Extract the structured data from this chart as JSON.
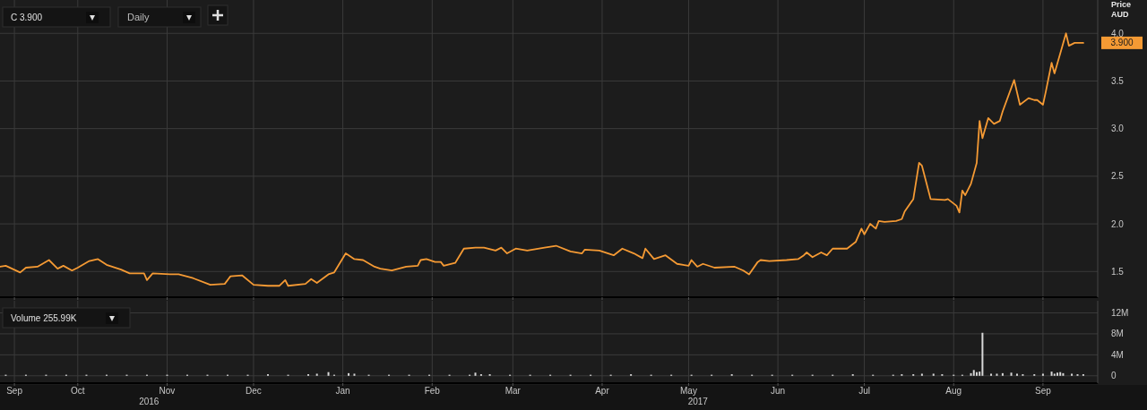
{
  "chart_data": [
    {
      "type": "line",
      "title": "C 3.900",
      "ylabel": "Price AUD",
      "annotations": [
        "Daily",
        "3.900"
      ],
      "grid": true,
      "tick_labels": "y",
      "xlim": [
        "2016-09-04",
        "2017-09-20"
      ],
      "xticks": [
        {
          "value": "2016-09-09",
          "label": null
        },
        {
          "value": "2016-10-01",
          "label": null
        },
        {
          "value": "2016-11-01",
          "label": null
        },
        {
          "value": "2016-12-01",
          "label": null
        },
        {
          "value": "2017-01-01",
          "label": null
        },
        {
          "value": "2017-02-01",
          "label": null
        },
        {
          "value": "2017-03-01",
          "label": null
        },
        {
          "value": "2017-04-01",
          "label": null
        },
        {
          "value": "2017-05-01",
          "label": null
        },
        {
          "value": "2017-06-01",
          "label": null
        },
        {
          "value": "2017-07-01",
          "label": null
        },
        {
          "value": "2017-08-01",
          "label": null
        },
        {
          "value": "2017-09-01",
          "label": null
        }
      ],
      "ylim": [
        1.23,
        4.35
      ],
      "yticks": [
        1.5,
        {
          "value": 2,
          "label": "2.0"
        },
        2.5,
        {
          "value": 3,
          "label": "3.0"
        },
        3.5,
        {
          "value": 4,
          "label": "4.0"
        }
      ],
      "series": [
        {
          "color": "#f59a34",
          "x": [
            "2016-09-04",
            "2016-09-06",
            "2016-09-11",
            "2016-09-13",
            "2016-09-17",
            "2016-09-21",
            "2016-09-24",
            "2016-09-26",
            "2016-09-29",
            "2016-10-01",
            "2016-10-05",
            "2016-10-08",
            "2016-10-11",
            "2016-10-16",
            "2016-10-19",
            "2016-10-24",
            "2016-10-25",
            "2016-10-27",
            "2016-11-02",
            "2016-11-05",
            "2016-11-10",
            "2016-11-16",
            "2016-11-21",
            "2016-11-23",
            "2016-11-27",
            "2016-12-01",
            "2016-12-06",
            "2016-12-10",
            "2016-12-12",
            "2016-12-13",
            "2016-12-19",
            "2016-12-21",
            "2016-12-23",
            "2016-12-27",
            "2016-12-29",
            "2017-01-02",
            "2017-01-05",
            "2017-01-08",
            "2017-01-12",
            "2017-01-14",
            "2017-01-18",
            "2017-01-23",
            "2017-01-27",
            "2017-01-28",
            "2017-01-30",
            "2017-02-02",
            "2017-02-04",
            "2017-02-05",
            "2017-02-09",
            "2017-02-12",
            "2017-02-16",
            "2017-02-19",
            "2017-02-23",
            "2017-02-25",
            "2017-02-27",
            "2017-03-02",
            "2017-03-06",
            "2017-03-12",
            "2017-03-16",
            "2017-03-21",
            "2017-03-25",
            "2017-03-26",
            "2017-03-31",
            "2017-04-05",
            "2017-04-08",
            "2017-04-12",
            "2017-04-15",
            "2017-04-16",
            "2017-04-19",
            "2017-04-23",
            "2017-04-27",
            "2017-05-01",
            "2017-05-02",
            "2017-05-04",
            "2017-05-06",
            "2017-05-10",
            "2017-05-17",
            "2017-05-20",
            "2017-05-22",
            "2017-05-25",
            "2017-05-26",
            "2017-05-29",
            "2017-06-04",
            "2017-06-08",
            "2017-06-10",
            "2017-06-11",
            "2017-06-13",
            "2017-06-16",
            "2017-06-18",
            "2017-06-20",
            "2017-06-23",
            "2017-06-25",
            "2017-06-28",
            "2017-06-30",
            "2017-07-01",
            "2017-07-03",
            "2017-07-05",
            "2017-07-06",
            "2017-07-08",
            "2017-07-12",
            "2017-07-14",
            "2017-07-15",
            "2017-07-18",
            "2017-07-20",
            "2017-07-21",
            "2017-07-24",
            "2017-07-29",
            "2017-07-30",
            "2017-08-02",
            "2017-08-03",
            "2017-08-04",
            "2017-08-05",
            "2017-08-07",
            "2017-08-09",
            "2017-08-10",
            "2017-08-11",
            "2017-08-13",
            "2017-08-15",
            "2017-08-17",
            "2017-08-18",
            "2017-08-22",
            "2017-08-24",
            "2017-08-27",
            "2017-08-29",
            "2017-08-30",
            "2017-09-01",
            "2017-09-02",
            "2017-09-04",
            "2017-09-05",
            "2017-09-09",
            "2017-09-10",
            "2017-09-12",
            "2017-09-15"
          ],
          "values": [
            1.55,
            1.56,
            1.49,
            1.54,
            1.55,
            1.62,
            1.53,
            1.56,
            1.51,
            1.54,
            1.61,
            1.63,
            1.57,
            1.52,
            1.48,
            1.48,
            1.41,
            1.48,
            1.47,
            1.47,
            1.43,
            1.36,
            1.37,
            1.45,
            1.46,
            1.36,
            1.35,
            1.35,
            1.41,
            1.35,
            1.37,
            1.42,
            1.38,
            1.47,
            1.49,
            1.69,
            1.63,
            1.62,
            1.55,
            1.53,
            1.51,
            1.55,
            1.56,
            1.62,
            1.63,
            1.6,
            1.6,
            1.56,
            1.59,
            1.74,
            1.75,
            1.75,
            1.72,
            1.75,
            1.69,
            1.74,
            1.72,
            1.75,
            1.77,
            1.71,
            1.69,
            1.73,
            1.72,
            1.67,
            1.74,
            1.69,
            1.64,
            1.74,
            1.63,
            1.67,
            1.58,
            1.56,
            1.62,
            1.55,
            1.58,
            1.54,
            1.55,
            1.51,
            1.47,
            1.6,
            1.62,
            1.61,
            1.62,
            1.63,
            1.67,
            1.7,
            1.65,
            1.7,
            1.67,
            1.74,
            1.74,
            1.74,
            1.81,
            1.95,
            1.89,
            2.0,
            1.95,
            2.03,
            2.02,
            2.03,
            2.05,
            2.13,
            2.26,
            2.64,
            2.61,
            2.26,
            2.25,
            2.26,
            2.19,
            2.12,
            2.35,
            2.3,
            2.42,
            2.64,
            3.08,
            2.9,
            3.11,
            3.05,
            3.08,
            3.18,
            3.51,
            3.25,
            3.32,
            3.3,
            3.3,
            3.25,
            3.39,
            3.69,
            3.58,
            4.0,
            3.87,
            3.9,
            3.9
          ]
        }
      ]
    },
    {
      "type": "bar",
      "title": "Volume 255.99K",
      "grid": true,
      "annotations": [
        "2016",
        "2017"
      ],
      "xlim": [
        "2016-09-04",
        "2017-09-20"
      ],
      "xticks": [
        {
          "value": "2016-09-09",
          "label": "Sep"
        },
        {
          "value": "2016-10-01",
          "label": "Oct"
        },
        {
          "value": "2016-11-01",
          "label": "Nov"
        },
        {
          "value": "2016-12-01",
          "label": "Dec"
        },
        {
          "value": "2017-01-01",
          "label": "Jan"
        },
        {
          "value": "2017-02-01",
          "label": "Feb"
        },
        {
          "value": "2017-03-01",
          "label": "Mar"
        },
        {
          "value": "2017-04-01",
          "label": "Apr"
        },
        {
          "value": "2017-05-01",
          "label": "May"
        },
        {
          "value": "2017-06-01",
          "label": "Jun"
        },
        {
          "value": "2017-07-01",
          "label": "Jul"
        },
        {
          "value": "2017-08-01",
          "label": "Aug"
        },
        {
          "value": "2017-09-01",
          "label": "Sep"
        }
      ],
      "ylim": [
        -1.4,
        14.3
      ],
      "yticks": [
        0,
        {
          "value": 4,
          "label": "4M"
        },
        {
          "value": 8,
          "label": "8M"
        },
        {
          "value": 12,
          "label": "12M"
        }
      ],
      "series": [
        {
          "color": "#d8d8d8",
          "x": [
            "2016-09-06",
            "2016-09-13",
            "2016-09-20",
            "2016-09-27",
            "2016-10-04",
            "2016-10-11",
            "2016-10-18",
            "2016-10-25",
            "2016-11-01",
            "2016-11-08",
            "2016-11-15",
            "2016-11-22",
            "2016-11-29",
            "2016-12-06",
            "2016-12-13",
            "2016-12-20",
            "2016-12-23",
            "2016-12-27",
            "2016-12-29",
            "2017-01-03",
            "2017-01-05",
            "2017-01-10",
            "2017-01-17",
            "2017-01-24",
            "2017-01-31",
            "2017-02-07",
            "2017-02-14",
            "2017-02-16",
            "2017-02-18",
            "2017-02-21",
            "2017-02-28",
            "2017-03-07",
            "2017-03-14",
            "2017-03-21",
            "2017-03-28",
            "2017-04-04",
            "2017-04-11",
            "2017-04-18",
            "2017-04-25",
            "2017-05-02",
            "2017-05-09",
            "2017-05-16",
            "2017-05-23",
            "2017-05-30",
            "2017-06-06",
            "2017-06-13",
            "2017-06-20",
            "2017-06-27",
            "2017-07-04",
            "2017-07-11",
            "2017-07-14",
            "2017-07-18",
            "2017-07-21",
            "2017-07-25",
            "2017-07-28",
            "2017-08-01",
            "2017-08-04",
            "2017-08-07",
            "2017-08-08",
            "2017-08-09",
            "2017-08-10",
            "2017-08-11",
            "2017-08-14",
            "2017-08-16",
            "2017-08-18",
            "2017-08-21",
            "2017-08-23",
            "2017-08-25",
            "2017-08-29",
            "2017-09-01",
            "2017-09-04",
            "2017-09-05",
            "2017-09-06",
            "2017-09-07",
            "2017-09-08",
            "2017-09-11",
            "2017-09-13",
            "2017-09-15"
          ],
          "values": [
            0.2,
            0.2,
            0.2,
            0.2,
            0.2,
            0.2,
            0.2,
            0.2,
            0.2,
            0.2,
            0.2,
            0.2,
            0.2,
            0.3,
            0.2,
            0.3,
            0.4,
            0.7,
            0.2,
            0.5,
            0.4,
            0.2,
            0.2,
            0.2,
            0.2,
            0.2,
            0.2,
            0.6,
            0.3,
            0.3,
            0.2,
            0.2,
            0.2,
            0.2,
            0.2,
            0.2,
            0.3,
            0.2,
            0.2,
            0.2,
            0.2,
            0.3,
            0.2,
            0.2,
            0.2,
            0.2,
            0.2,
            0.3,
            0.2,
            0.2,
            0.3,
            0.3,
            0.4,
            0.4,
            0.3,
            0.2,
            0.2,
            0.5,
            1.1,
            0.7,
            0.8,
            8.2,
            0.4,
            0.4,
            0.5,
            0.6,
            0.4,
            0.3,
            0.3,
            0.4,
            0.8,
            0.4,
            0.6,
            0.7,
            0.5,
            0.4,
            0.3,
            0.3
          ]
        }
      ]
    }
  ]
}
